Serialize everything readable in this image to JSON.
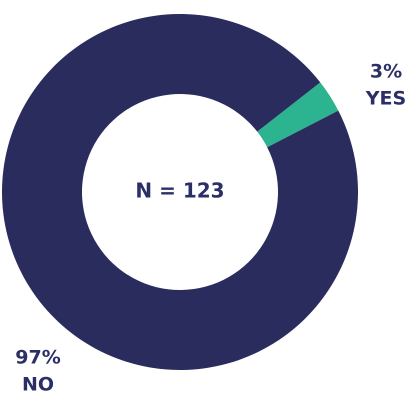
{
  "chart_data": {
    "type": "donut",
    "categories": [
      "YES",
      "NO"
    ],
    "values": [
      3,
      97
    ],
    "value_labels": [
      "3%",
      "97%"
    ],
    "colors": [
      "#2bb48f",
      "#2b2c5e"
    ],
    "center_label": "N = 123"
  }
}
